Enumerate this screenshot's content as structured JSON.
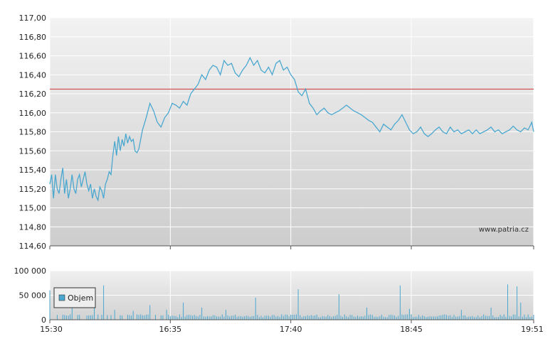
{
  "chart_data": [
    {
      "type": "line",
      "y_ticks": [
        "117,00",
        "116,80",
        "116,60",
        "116,40",
        "116,20",
        "116,00",
        "115,80",
        "115,60",
        "115,40",
        "115,20",
        "115,00",
        "114,80",
        "114,60"
      ],
      "y_tick_values": [
        117.0,
        116.8,
        116.6,
        116.4,
        116.2,
        116.0,
        115.8,
        115.6,
        115.4,
        115.2,
        115.0,
        114.8,
        114.6
      ],
      "ylim": [
        114.6,
        117.0
      ],
      "x_range_minutes": [
        930,
        1191
      ],
      "reference_line": 116.25,
      "watermark": "www.patria.cz",
      "grid": true,
      "colors": {
        "line": "#4aa8d0",
        "reference": "#cc3333"
      },
      "series": [
        {
          "x": [
            930,
            931,
            932,
            933,
            934,
            935,
            936,
            937,
            938,
            939,
            940,
            941,
            942,
            943,
            944,
            945,
            946,
            947,
            948,
            949,
            950,
            951,
            952,
            953,
            954,
            955,
            956,
            957,
            958,
            959,
            960,
            961,
            962,
            963,
            964,
            965,
            966,
            967,
            968,
            969,
            970,
            971,
            972,
            973,
            974,
            975,
            976,
            977,
            978,
            980,
            982,
            984,
            986,
            988,
            990,
            992,
            994,
            996,
            998,
            1000,
            1002,
            1004,
            1006,
            1008,
            1010,
            1012,
            1014,
            1016,
            1018,
            1020,
            1022,
            1024,
            1026,
            1028,
            1030,
            1032,
            1034,
            1036,
            1038,
            1040,
            1042,
            1044,
            1046,
            1048,
            1050,
            1052,
            1054,
            1056,
            1058,
            1060,
            1062,
            1064,
            1066,
            1068,
            1070,
            1072,
            1074,
            1076,
            1078,
            1080,
            1082,
            1084,
            1086,
            1088,
            1090,
            1092,
            1094,
            1096,
            1098,
            1100,
            1102,
            1104,
            1106,
            1108,
            1110,
            1112,
            1114,
            1116,
            1118,
            1120,
            1122,
            1124,
            1126,
            1128,
            1130,
            1132,
            1134,
            1136,
            1138,
            1140,
            1142,
            1144,
            1146,
            1148,
            1150,
            1152,
            1154,
            1156,
            1158,
            1160,
            1162,
            1164,
            1166,
            1168,
            1170,
            1172,
            1174,
            1176,
            1178,
            1180,
            1182,
            1184,
            1186,
            1188,
            1190,
            1191
          ],
          "values": [
            115.25,
            115.35,
            115.1,
            115.35,
            115.2,
            115.15,
            115.3,
            115.42,
            115.15,
            115.3,
            115.1,
            115.2,
            115.35,
            115.2,
            115.15,
            115.3,
            115.35,
            115.22,
            115.3,
            115.38,
            115.25,
            115.18,
            115.25,
            115.1,
            115.2,
            115.12,
            115.08,
            115.22,
            115.18,
            115.1,
            115.25,
            115.3,
            115.38,
            115.35,
            115.55,
            115.7,
            115.55,
            115.75,
            115.6,
            115.72,
            115.65,
            115.78,
            115.68,
            115.75,
            115.7,
            115.72,
            115.6,
            115.58,
            115.62,
            115.82,
            115.95,
            116.1,
            116.02,
            115.9,
            115.85,
            115.95,
            116.0,
            116.1,
            116.08,
            116.05,
            116.12,
            116.08,
            116.2,
            116.25,
            116.3,
            116.4,
            116.35,
            116.45,
            116.5,
            116.48,
            116.4,
            116.55,
            116.5,
            116.52,
            116.42,
            116.38,
            116.45,
            116.5,
            116.58,
            116.5,
            116.55,
            116.45,
            116.42,
            116.48,
            116.4,
            116.52,
            116.55,
            116.45,
            116.48,
            116.4,
            116.35,
            116.22,
            116.18,
            116.25,
            116.1,
            116.05,
            115.98,
            116.02,
            116.05,
            116.0,
            115.98,
            116.0,
            116.02,
            116.05,
            116.08,
            116.05,
            116.02,
            116.0,
            115.98,
            115.95,
            115.92,
            115.9,
            115.85,
            115.8,
            115.88,
            115.85,
            115.82,
            115.88,
            115.92,
            115.98,
            115.9,
            115.82,
            115.78,
            115.8,
            115.85,
            115.78,
            115.75,
            115.78,
            115.82,
            115.85,
            115.8,
            115.78,
            115.85,
            115.8,
            115.82,
            115.78,
            115.8,
            115.82,
            115.78,
            115.82,
            115.78,
            115.8,
            115.82,
            115.85,
            115.8,
            115.82,
            115.78,
            115.8,
            115.82,
            115.86,
            115.82,
            115.8,
            115.84,
            115.82,
            115.9,
            115.8
          ]
        }
      ]
    },
    {
      "type": "bar",
      "y_ticks": [
        "100 000",
        "50 000",
        "0"
      ],
      "y_tick_values": [
        100000,
        50000,
        0
      ],
      "ylim": [
        0,
        100000
      ],
      "x_ticks": [
        "15:30",
        "16:35",
        "17:40",
        "18:45",
        "19:51"
      ],
      "x_tick_minutes": [
        930,
        995,
        1060,
        1125,
        1191
      ],
      "legend": {
        "label": "Objem",
        "position": "left"
      },
      "colors": {
        "bar": "#4aa8d0"
      },
      "spikes": [
        {
          "x": 930,
          "value": 60000
        },
        {
          "x": 942,
          "value": 25000
        },
        {
          "x": 954,
          "value": 25000
        },
        {
          "x": 959,
          "value": 70000
        },
        {
          "x": 965,
          "value": 20000
        },
        {
          "x": 975,
          "value": 18000
        },
        {
          "x": 984,
          "value": 30000
        },
        {
          "x": 993,
          "value": 20000
        },
        {
          "x": 1002,
          "value": 35000
        },
        {
          "x": 1012,
          "value": 25000
        },
        {
          "x": 1025,
          "value": 20000
        },
        {
          "x": 1041,
          "value": 45000
        },
        {
          "x": 1064,
          "value": 62000
        },
        {
          "x": 1086,
          "value": 52000
        },
        {
          "x": 1101,
          "value": 25000
        },
        {
          "x": 1119,
          "value": 70000
        },
        {
          "x": 1124,
          "value": 22000
        },
        {
          "x": 1152,
          "value": 20000
        },
        {
          "x": 1168,
          "value": 25000
        },
        {
          "x": 1177,
          "value": 72000
        },
        {
          "x": 1182,
          "value": 68000
        },
        {
          "x": 1184,
          "value": 35000
        }
      ],
      "base_value": 10000
    }
  ]
}
